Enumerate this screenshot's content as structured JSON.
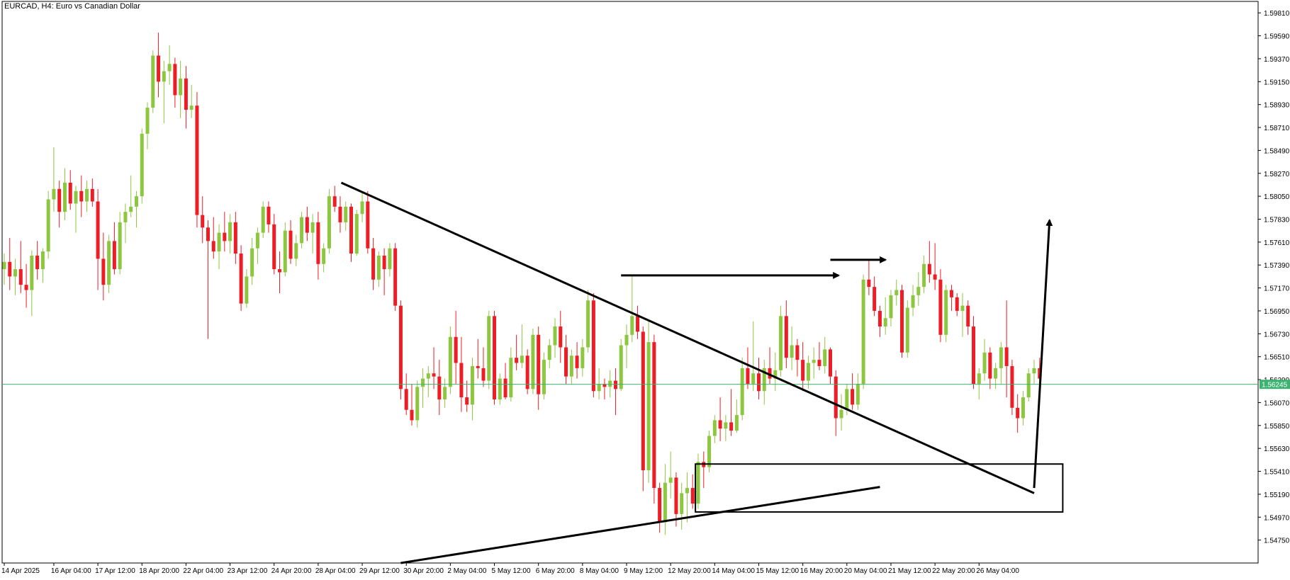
{
  "chart_data": {
    "type": "candlestick",
    "title": "EURCAD, H4:  Euro vs Canadian Dollar",
    "symbol": "EURCAD",
    "timeframe": "H4",
    "ylim": [
      1.5453,
      1.5992
    ],
    "y_ticks": [
      "1.59810",
      "1.59590",
      "1.59370",
      "1.59150",
      "1.58930",
      "1.58710",
      "1.58490",
      "1.58270",
      "1.58050",
      "1.57830",
      "1.57610",
      "1.57390",
      "1.57170",
      "1.56950",
      "1.56730",
      "1.56510",
      "1.56290",
      "1.56070",
      "1.55850",
      "1.55630",
      "1.55410",
      "1.55190",
      "1.54970",
      "1.54750"
    ],
    "x_ticks": [
      {
        "label": "14 Apr 2025",
        "bar": 0
      },
      {
        "label": "16 Apr 04:00",
        "bar": 9
      },
      {
        "label": "17 Apr 12:00",
        "bar": 17
      },
      {
        "label": "18 Apr 20:00",
        "bar": 25
      },
      {
        "label": "22 Apr 04:00",
        "bar": 33
      },
      {
        "label": "23 Apr 12:00",
        "bar": 41
      },
      {
        "label": "24 Apr 20:00",
        "bar": 49
      },
      {
        "label": "28 Apr 04:00",
        "bar": 57
      },
      {
        "label": "29 Apr 12:00",
        "bar": 65
      },
      {
        "label": "30 Apr 20:00",
        "bar": 73
      },
      {
        "label": "2 May 04:00",
        "bar": 81
      },
      {
        "label": "5 May 12:00",
        "bar": 89
      },
      {
        "label": "6 May 20:00",
        "bar": 97
      },
      {
        "label": "8 May 04:00",
        "bar": 105
      },
      {
        "label": "9 May 12:00",
        "bar": 113
      },
      {
        "label": "12 May 20:00",
        "bar": 121
      },
      {
        "label": "14 May 04:00",
        "bar": 129
      },
      {
        "label": "15 May 12:00",
        "bar": 137
      },
      {
        "label": "16 May 20:00",
        "bar": 145
      },
      {
        "label": "20 May 04:00",
        "bar": 153
      },
      {
        "label": "21 May 12:00",
        "bar": 161
      },
      {
        "label": "22 May 20:00",
        "bar": 169
      },
      {
        "label": "26 May 04:00",
        "bar": 177
      }
    ],
    "current_price": 1.56245,
    "current_price_label": "1.56245",
    "colors": {
      "bull": "#8DC63F",
      "bear": "#EE1C25",
      "axis": "#000000",
      "price_line": "#3CB371",
      "annotation": "#000000"
    },
    "candles": [
      [
        1.5735,
        1.575,
        1.572,
        1.5742
      ],
      [
        1.5742,
        1.5765,
        1.5715,
        1.5728
      ],
      [
        1.5728,
        1.5745,
        1.571,
        1.5735
      ],
      [
        1.5735,
        1.5762,
        1.5712,
        1.572
      ],
      [
        1.572,
        1.574,
        1.5698,
        1.5715
      ],
      [
        1.5715,
        1.5753,
        1.569,
        1.5748
      ],
      [
        1.5748,
        1.5762,
        1.5725,
        1.5735
      ],
      [
        1.5735,
        1.5755,
        1.5722,
        1.5752
      ],
      [
        1.5752,
        1.581,
        1.5745,
        1.5802
      ],
      [
        1.5802,
        1.5852,
        1.579,
        1.5812
      ],
      [
        1.5812,
        1.582,
        1.5775,
        1.579
      ],
      [
        1.579,
        1.5832,
        1.5782,
        1.5818
      ],
      [
        1.5818,
        1.583,
        1.5792,
        1.5798
      ],
      [
        1.5798,
        1.5815,
        1.577,
        1.581
      ],
      [
        1.581,
        1.5825,
        1.5785,
        1.58
      ],
      [
        1.58,
        1.582,
        1.579,
        1.5812
      ],
      [
        1.5812,
        1.5822,
        1.5795,
        1.58
      ],
      [
        1.58,
        1.5812,
        1.5715,
        1.5745
      ],
      [
        1.5745,
        1.577,
        1.5705,
        1.572
      ],
      [
        1.572,
        1.5768,
        1.5712,
        1.5762
      ],
      [
        1.5762,
        1.578,
        1.573,
        1.5735
      ],
      [
        1.5735,
        1.579,
        1.573,
        1.578
      ],
      [
        1.578,
        1.5798,
        1.576,
        1.579
      ],
      [
        1.579,
        1.5825,
        1.5785,
        1.5795
      ],
      [
        1.5795,
        1.581,
        1.5775,
        1.5805
      ],
      [
        1.5805,
        1.587,
        1.5798,
        1.5865
      ],
      [
        1.5865,
        1.5895,
        1.585,
        1.589
      ],
      [
        1.589,
        1.5945,
        1.5885,
        1.594
      ],
      [
        1.594,
        1.5962,
        1.59,
        1.5915
      ],
      [
        1.5915,
        1.5935,
        1.5875,
        1.5925
      ],
      [
        1.5925,
        1.595,
        1.5912,
        1.5932
      ],
      [
        1.5932,
        1.5938,
        1.589,
        1.5902
      ],
      [
        1.5902,
        1.5935,
        1.588,
        1.5918
      ],
      [
        1.5918,
        1.593,
        1.587,
        1.5888
      ],
      [
        1.5888,
        1.5912,
        1.588,
        1.5892
      ],
      [
        1.5892,
        1.5905,
        1.5775,
        1.5787
      ],
      [
        1.5787,
        1.5805,
        1.576,
        1.5775
      ],
      [
        1.5775,
        1.5782,
        1.5668,
        1.5762
      ],
      [
        1.5762,
        1.5785,
        1.5745,
        1.5752
      ],
      [
        1.5752,
        1.5778,
        1.5735,
        1.577
      ],
      [
        1.577,
        1.579,
        1.5752,
        1.5762
      ],
      [
        1.5762,
        1.5788,
        1.575,
        1.578
      ],
      [
        1.578,
        1.579,
        1.574,
        1.575
      ],
      [
        1.575,
        1.5758,
        1.5695,
        1.5702
      ],
      [
        1.5702,
        1.5735,
        1.5698,
        1.5728
      ],
      [
        1.5728,
        1.5765,
        1.572,
        1.5755
      ],
      [
        1.5755,
        1.5775,
        1.574,
        1.577
      ],
      [
        1.577,
        1.58,
        1.5765,
        1.5795
      ],
      [
        1.5795,
        1.58,
        1.577,
        1.5778
      ],
      [
        1.5778,
        1.5788,
        1.573,
        1.5735
      ],
      [
        1.5735,
        1.5752,
        1.5712,
        1.5732
      ],
      [
        1.5732,
        1.578,
        1.5728,
        1.5772
      ],
      [
        1.5772,
        1.5782,
        1.574,
        1.5745
      ],
      [
        1.5745,
        1.5768,
        1.5738,
        1.576
      ],
      [
        1.576,
        1.579,
        1.5755,
        1.5785
      ],
      [
        1.5785,
        1.5795,
        1.5762,
        1.577
      ],
      [
        1.577,
        1.5788,
        1.575,
        1.578
      ],
      [
        1.578,
        1.579,
        1.5725,
        1.574
      ],
      [
        1.574,
        1.576,
        1.5732,
        1.5755
      ],
      [
        1.5755,
        1.5812,
        1.575,
        1.5805
      ],
      [
        1.5805,
        1.5815,
        1.579,
        1.5795
      ],
      [
        1.5795,
        1.5805,
        1.577,
        1.578
      ],
      [
        1.578,
        1.58,
        1.5772,
        1.5795
      ],
      [
        1.5795,
        1.5798,
        1.5742,
        1.575
      ],
      [
        1.575,
        1.5792,
        1.5748,
        1.5788
      ],
      [
        1.5788,
        1.5808,
        1.578,
        1.58
      ],
      [
        1.58,
        1.581,
        1.575,
        1.5755
      ],
      [
        1.5755,
        1.5765,
        1.5715,
        1.5725
      ],
      [
        1.5725,
        1.5752,
        1.5718,
        1.5748
      ],
      [
        1.5748,
        1.5755,
        1.571,
        1.5735
      ],
      [
        1.5735,
        1.576,
        1.5728,
        1.5755
      ],
      [
        1.5755,
        1.576,
        1.5695,
        1.57
      ],
      [
        1.57,
        1.5705,
        1.561,
        1.562
      ],
      [
        1.562,
        1.5635,
        1.5595,
        1.56
      ],
      [
        1.56,
        1.5625,
        1.5585,
        1.559
      ],
      [
        1.559,
        1.5628,
        1.5583,
        1.5622
      ],
      [
        1.5622,
        1.564,
        1.5602,
        1.563
      ],
      [
        1.563,
        1.5642,
        1.5612,
        1.5635
      ],
      [
        1.5635,
        1.566,
        1.562,
        1.5632
      ],
      [
        1.5632,
        1.5648,
        1.5595,
        1.561
      ],
      [
        1.561,
        1.563,
        1.5602,
        1.5622
      ],
      [
        1.5622,
        1.568,
        1.5615,
        1.567
      ],
      [
        1.567,
        1.5695,
        1.5625,
        1.5645
      ],
      [
        1.5645,
        1.567,
        1.5598,
        1.5612
      ],
      [
        1.5612,
        1.5628,
        1.5598,
        1.5605
      ],
      [
        1.5605,
        1.565,
        1.559,
        1.5642
      ],
      [
        1.5642,
        1.5668,
        1.563,
        1.564
      ],
      [
        1.564,
        1.566,
        1.5622,
        1.5628
      ],
      [
        1.5628,
        1.5695,
        1.562,
        1.569
      ],
      [
        1.569,
        1.5695,
        1.5605,
        1.561
      ],
      [
        1.561,
        1.5635,
        1.5605,
        1.563
      ],
      [
        1.563,
        1.5645,
        1.561,
        1.5612
      ],
      [
        1.5612,
        1.566,
        1.5608,
        1.565
      ],
      [
        1.565,
        1.5672,
        1.5638,
        1.5645
      ],
      [
        1.5645,
        1.5682,
        1.564,
        1.5652
      ],
      [
        1.5652,
        1.5658,
        1.5615,
        1.562
      ],
      [
        1.562,
        1.5678,
        1.5615,
        1.5672
      ],
      [
        1.5672,
        1.568,
        1.56,
        1.5615
      ],
      [
        1.5615,
        1.5655,
        1.561,
        1.5648
      ],
      [
        1.5648,
        1.5668,
        1.564,
        1.5662
      ],
      [
        1.5662,
        1.5688,
        1.565,
        1.568
      ],
      [
        1.568,
        1.5695,
        1.5645,
        1.566
      ],
      [
        1.566,
        1.5672,
        1.5625,
        1.5632
      ],
      [
        1.5632,
        1.5658,
        1.5625,
        1.5652
      ],
      [
        1.5652,
        1.5665,
        1.563,
        1.564
      ],
      [
        1.564,
        1.5668,
        1.5632,
        1.566
      ],
      [
        1.566,
        1.5715,
        1.5655,
        1.5705
      ],
      [
        1.5705,
        1.5712,
        1.5612,
        1.5618
      ],
      [
        1.5618,
        1.564,
        1.561,
        1.5625
      ],
      [
        1.5625,
        1.563,
        1.561,
        1.5622
      ],
      [
        1.5622,
        1.5638,
        1.5612,
        1.5628
      ],
      [
        1.5628,
        1.564,
        1.5595,
        1.562
      ],
      [
        1.562,
        1.5668,
        1.5618,
        1.5662
      ],
      [
        1.5662,
        1.5682,
        1.564,
        1.5672
      ],
      [
        1.5672,
        1.5728,
        1.5665,
        1.569
      ],
      [
        1.569,
        1.57,
        1.5668,
        1.5675
      ],
      [
        1.5675,
        1.568,
        1.5522,
        1.5542
      ],
      [
        1.5542,
        1.5685,
        1.553,
        1.5665
      ],
      [
        1.5665,
        1.5672,
        1.551,
        1.5525
      ],
      [
        1.5525,
        1.553,
        1.5482,
        1.5492
      ],
      [
        1.5492,
        1.5548,
        1.548,
        1.553
      ],
      [
        1.553,
        1.556,
        1.5515,
        1.5535
      ],
      [
        1.5535,
        1.554,
        1.5488,
        1.55
      ],
      [
        1.55,
        1.553,
        1.5485,
        1.552
      ],
      [
        1.552,
        1.554,
        1.5492,
        1.5525
      ],
      [
        1.5525,
        1.5538,
        1.5505,
        1.551
      ],
      [
        1.551,
        1.5558,
        1.5505,
        1.555
      ],
      [
        1.555,
        1.556,
        1.5525,
        1.5545
      ],
      [
        1.5545,
        1.558,
        1.554,
        1.5575
      ],
      [
        1.5575,
        1.5595,
        1.5568,
        1.559
      ],
      [
        1.559,
        1.5612,
        1.557,
        1.5582
      ],
      [
        1.5582,
        1.5595,
        1.557,
        1.5588
      ],
      [
        1.5588,
        1.562,
        1.5575,
        1.558
      ],
      [
        1.558,
        1.561,
        1.5578,
        1.5595
      ],
      [
        1.5595,
        1.565,
        1.559,
        1.564
      ],
      [
        1.564,
        1.566,
        1.562,
        1.5625
      ],
      [
        1.5625,
        1.5685,
        1.5618,
        1.5635
      ],
      [
        1.5635,
        1.565,
        1.561,
        1.5618
      ],
      [
        1.5618,
        1.5648,
        1.5605,
        1.564
      ],
      [
        1.564,
        1.566,
        1.5625,
        1.563
      ],
      [
        1.563,
        1.5655,
        1.5618,
        1.5638
      ],
      [
        1.5638,
        1.57,
        1.5632,
        1.569
      ],
      [
        1.569,
        1.5705,
        1.564,
        1.565
      ],
      [
        1.565,
        1.568,
        1.5638,
        1.5662
      ],
      [
        1.5662,
        1.5668,
        1.5632,
        1.5648
      ],
      [
        1.5648,
        1.5665,
        1.5618,
        1.5628
      ],
      [
        1.5628,
        1.5652,
        1.562,
        1.5645
      ],
      [
        1.5645,
        1.566,
        1.563,
        1.5648
      ],
      [
        1.5648,
        1.5665,
        1.5638,
        1.5642
      ],
      [
        1.5642,
        1.567,
        1.5635,
        1.5658
      ],
      [
        1.5658,
        1.566,
        1.5625,
        1.5632
      ],
      [
        1.5632,
        1.5638,
        1.5575,
        1.5592
      ],
      [
        1.5592,
        1.5615,
        1.558,
        1.56
      ],
      [
        1.56,
        1.5625,
        1.5595,
        1.562
      ],
      [
        1.562,
        1.5635,
        1.56,
        1.5605
      ],
      [
        1.5605,
        1.5635,
        1.56,
        1.5625
      ],
      [
        1.5625,
        1.573,
        1.562,
        1.5725
      ],
      [
        1.5725,
        1.5745,
        1.571,
        1.5718
      ],
      [
        1.5718,
        1.5728,
        1.569,
        1.5695
      ],
      [
        1.5695,
        1.57,
        1.567,
        1.568
      ],
      [
        1.568,
        1.5708,
        1.5672,
        1.5688
      ],
      [
        1.5688,
        1.5715,
        1.568,
        1.571
      ],
      [
        1.571,
        1.5725,
        1.57,
        1.5715
      ],
      [
        1.5715,
        1.572,
        1.565,
        1.5655
      ],
      [
        1.5655,
        1.5705,
        1.565,
        1.5698
      ],
      [
        1.5698,
        1.572,
        1.569,
        1.571
      ],
      [
        1.571,
        1.5732,
        1.57,
        1.5718
      ],
      [
        1.5718,
        1.5748,
        1.5712,
        1.574
      ],
      [
        1.574,
        1.5762,
        1.5722,
        1.573
      ],
      [
        1.573,
        1.576,
        1.5715,
        1.5725
      ],
      [
        1.5725,
        1.5735,
        1.5665,
        1.5672
      ],
      [
        1.5672,
        1.572,
        1.5665,
        1.5715
      ],
      [
        1.5715,
        1.572,
        1.5695,
        1.5708
      ],
      [
        1.5708,
        1.5712,
        1.569,
        1.5695
      ],
      [
        1.5695,
        1.5712,
        1.567,
        1.57
      ],
      [
        1.57,
        1.5705,
        1.5672,
        1.568
      ],
      [
        1.568,
        1.569,
        1.562,
        1.5625
      ],
      [
        1.5625,
        1.564,
        1.561,
        1.5635
      ],
      [
        1.5635,
        1.5668,
        1.5628,
        1.5655
      ],
      [
        1.5655,
        1.566,
        1.562,
        1.563
      ],
      [
        1.563,
        1.5645,
        1.562,
        1.564
      ],
      [
        1.564,
        1.5665,
        1.5625,
        1.566
      ],
      [
        1.566,
        1.5705,
        1.5612,
        1.5642
      ],
      [
        1.5642,
        1.5648,
        1.5595,
        1.5602
      ],
      [
        1.5602,
        1.5615,
        1.5578,
        1.5592
      ],
      [
        1.5592,
        1.5618,
        1.5585,
        1.5612
      ],
      [
        1.5612,
        1.564,
        1.5608,
        1.5635
      ],
      [
        1.5635,
        1.5648,
        1.5625,
        1.564
      ],
      [
        1.564,
        1.565,
        1.5618,
        1.563
      ]
    ]
  }
}
